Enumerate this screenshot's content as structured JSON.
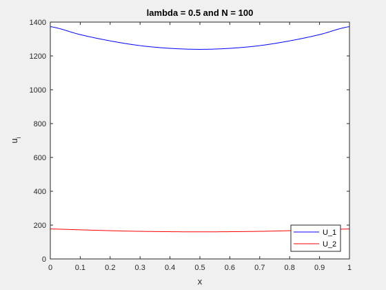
{
  "chart_data": {
    "type": "line",
    "title": "lambda = 0.5 and N = 100",
    "xlabel": "x",
    "ylabel": "u",
    "ylabel_subscript": "i",
    "xlim": [
      0,
      1
    ],
    "ylim": [
      0,
      1400
    ],
    "xticks": [
      "0",
      "0.1",
      "0.2",
      "0.3",
      "0.4",
      "0.5",
      "0.6",
      "0.7",
      "0.8",
      "0.9",
      "1"
    ],
    "yticks": [
      "0",
      "200",
      "400",
      "600",
      "800",
      "1000",
      "1200",
      "1400"
    ],
    "grid": false,
    "legend_position": "bottom-right",
    "x": [
      0,
      0.1,
      0.2,
      0.3,
      0.4,
      0.5,
      0.6,
      0.7,
      0.8,
      0.9,
      1.0
    ],
    "series": [
      {
        "name": "U_1",
        "color": "#0000ff",
        "values": [
          1373,
          1326,
          1289,
          1261,
          1245,
          1239,
          1245,
          1261,
          1289,
          1326,
          1373
        ]
      },
      {
        "name": "U_2",
        "color": "#ff0000",
        "values": [
          177,
          172,
          167,
          163,
          161,
          160,
          161,
          163,
          167,
          172,
          177
        ]
      }
    ]
  }
}
